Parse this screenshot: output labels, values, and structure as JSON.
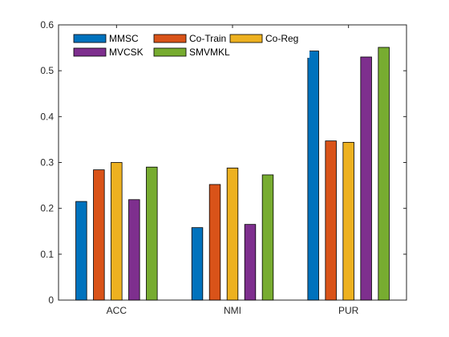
{
  "chart_data": {
    "type": "bar",
    "categories": [
      "ACC",
      "NMI",
      "PUR"
    ],
    "series": [
      {
        "name": "MMSC",
        "color": "#0072BD",
        "values": [
          0.215,
          0.158,
          0.543
        ]
      },
      {
        "name": "Co-Train",
        "color": "#D95319",
        "values": [
          0.284,
          0.252,
          0.347
        ]
      },
      {
        "name": "Co-Reg",
        "color": "#EDB120",
        "values": [
          0.3,
          0.288,
          0.344
        ]
      },
      {
        "name": "MVCSK",
        "color": "#7E2F8E",
        "values": [
          0.219,
          0.165,
          0.53
        ]
      },
      {
        "name": "SMVMKL",
        "color": "#77AC30",
        "values": [
          0.29,
          0.273,
          0.551
        ]
      }
    ],
    "ylim": [
      0,
      0.6
    ],
    "yticks": [
      "0",
      "0.1",
      "0.2",
      "0.3",
      "0.4",
      "0.5",
      "0.6"
    ],
    "legend_position": "top-left",
    "legend_columns": 3,
    "grid": false
  }
}
